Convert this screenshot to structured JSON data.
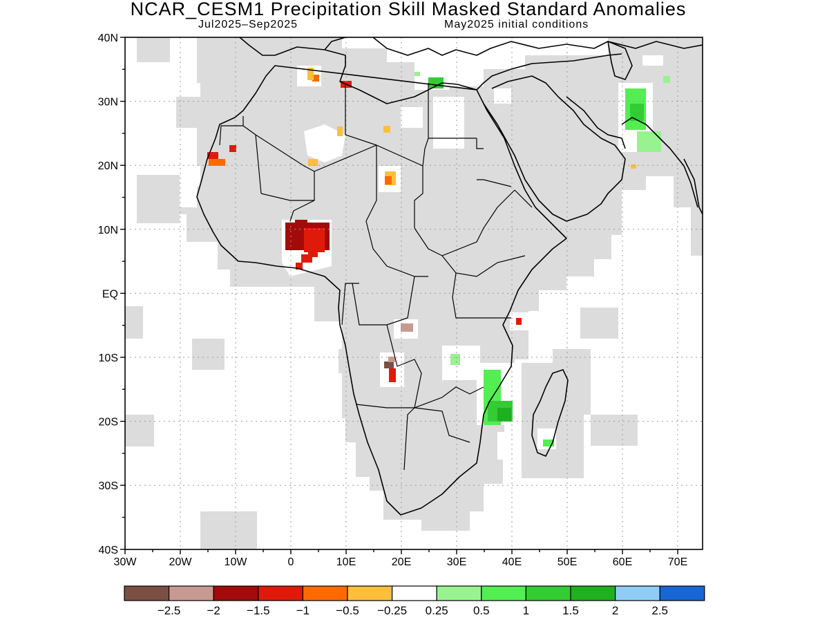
{
  "header": {
    "title": "NCAR_CESM1 Precipitation Skill Masked Standard Anomalies",
    "period": "Jul2025–Sep2025",
    "init": "May2025 initial conditions"
  },
  "axes": {
    "lat_labels": [
      "40N",
      "30N",
      "20N",
      "10N",
      "EQ",
      "10S",
      "20S",
      "30S",
      "40S"
    ],
    "lon_labels": [
      "30W",
      "20W",
      "10W",
      "0",
      "10E",
      "20E",
      "30E",
      "40E",
      "50E",
      "60E",
      "70E"
    ]
  },
  "colors": {
    "masked_land": "#dcdcdc",
    "frame": "#000000"
  },
  "colorbar": {
    "colors": [
      "#7b4f44",
      "#c79a91",
      "#a30b0b",
      "#e01a0a",
      "#fe6a00",
      "#fdbe3a",
      "#ffffff",
      "#98f290",
      "#52ee52",
      "#33cc33",
      "#1fb01f",
      "#90cdf6",
      "#1866d6"
    ],
    "labels": [
      "−2.5",
      "−2",
      "−1.5",
      "−1",
      "−0.5",
      "−0.25",
      "0.25",
      "0.5",
      "1",
      "1.5",
      "2",
      "2.5"
    ]
  },
  "anomalies": [
    {
      "region": "Nigeria-Benin",
      "level": "-1.5 to -2",
      "color": "#a30b0b"
    },
    {
      "region": "Ghana coast",
      "level": "-1 to -1.5",
      "color": "#e01a0a"
    },
    {
      "region": "Mauritania",
      "level": "-0.5 to -1",
      "color": "#fe6a00"
    },
    {
      "region": "Algeria-Tunisia",
      "level": "-0.25 to -1",
      "color": "#fdbe3a"
    },
    {
      "region": "Chad",
      "level": "-0.25 to -0.5",
      "color": "#fdbe3a"
    },
    {
      "region": "Angola",
      "level": "-2 to -2.5",
      "color": "#c79a91"
    },
    {
      "region": "Mozambique",
      "level": "0.5 to 1.5",
      "color": "#33cc33"
    },
    {
      "region": "Pakistan",
      "level": "0.25 to 1",
      "color": "#52ee52"
    },
    {
      "region": "Libya coast",
      "level": "0.5 to 1",
      "color": "#33cc33"
    },
    {
      "region": "Madagascar",
      "level": "0.5 to 1",
      "color": "#52ee52"
    }
  ]
}
